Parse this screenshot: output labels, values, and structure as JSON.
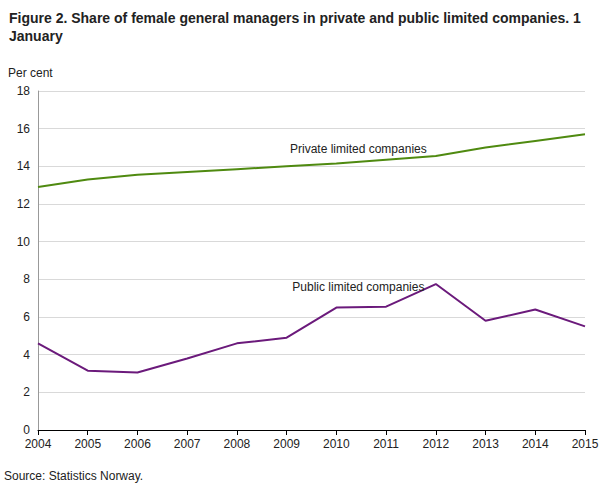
{
  "chart_data": {
    "type": "line",
    "title": "Figure 2. Share of female general managers in private and public limited companies. 1 January",
    "y_label": "Per cent",
    "source": "Source: Statistics Norway.",
    "categories": [
      "2004",
      "2005",
      "2006",
      "2007",
      "2008",
      "2009",
      "2010",
      "2011",
      "2012",
      "2013",
      "2014",
      "2015"
    ],
    "series": [
      {
        "name": "Private limited companies",
        "color": "#4f8a10",
        "values": [
          12.9,
          13.3,
          13.55,
          13.7,
          13.85,
          14.0,
          14.15,
          14.35,
          14.55,
          15.0,
          15.35,
          15.7
        ]
      },
      {
        "name": "Public limited companies",
        "color": "#6b1a7b",
        "values": [
          4.6,
          3.15,
          3.05,
          3.8,
          4.6,
          4.9,
          6.5,
          6.55,
          7.75,
          5.8,
          6.4,
          5.5
        ]
      }
    ],
    "ylim": [
      0,
      18
    ],
    "yticks": [
      0,
      2,
      4,
      6,
      8,
      10,
      12,
      14,
      16,
      18
    ],
    "grid": true
  }
}
